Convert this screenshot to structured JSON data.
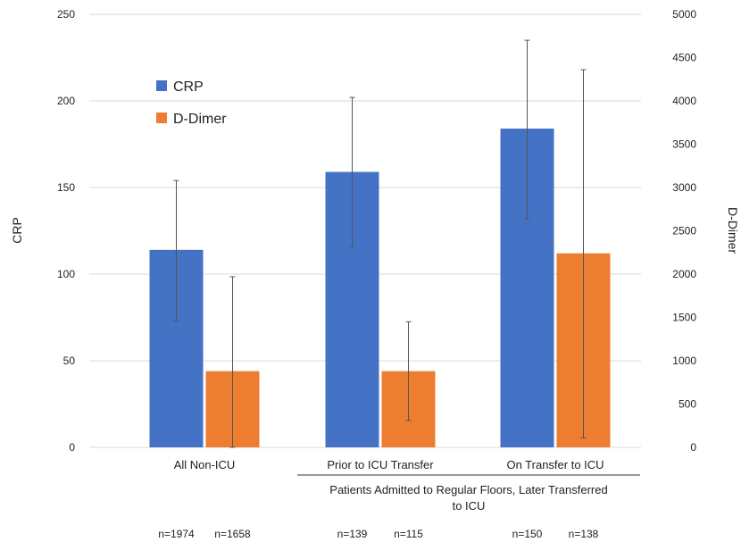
{
  "chart_data": {
    "type": "bar",
    "categories": [
      "All Non-ICU",
      "Prior to ICU Transfer",
      "On Transfer to ICU"
    ],
    "group_label": "Patients Admitted to Regular Floors, Later Transferred to ICU",
    "ylabel": "CRP",
    "y2label": "D-Dimer",
    "ylim": [
      0,
      250
    ],
    "y2lim": [
      0,
      5000
    ],
    "yticks": [
      "0",
      "50",
      "100",
      "150",
      "200",
      "250"
    ],
    "y2ticks": [
      "0",
      "500",
      "1000",
      "1500",
      "2000",
      "2500",
      "3000",
      "3500",
      "4000",
      "4500",
      "5000"
    ],
    "grid": true,
    "legend_position": "top-left",
    "series": [
      {
        "name": "CRP",
        "axis": "left",
        "color": "#4472C4",
        "values": [
          114,
          159,
          184
        ],
        "error_low": [
          73,
          116,
          132
        ],
        "error_high": [
          154,
          202,
          235
        ],
        "n_labels": [
          "n=1974",
          "n=139",
          "n=150"
        ]
      },
      {
        "name": "D-Dimer",
        "axis": "right",
        "color": "#ED7D31",
        "values": [
          880,
          880,
          2240
        ],
        "error_low": [
          0,
          310,
          110
        ],
        "error_high": [
          1970,
          1450,
          4360
        ],
        "n_labels": [
          "n=1658",
          "n=115",
          "n=138"
        ]
      }
    ]
  }
}
